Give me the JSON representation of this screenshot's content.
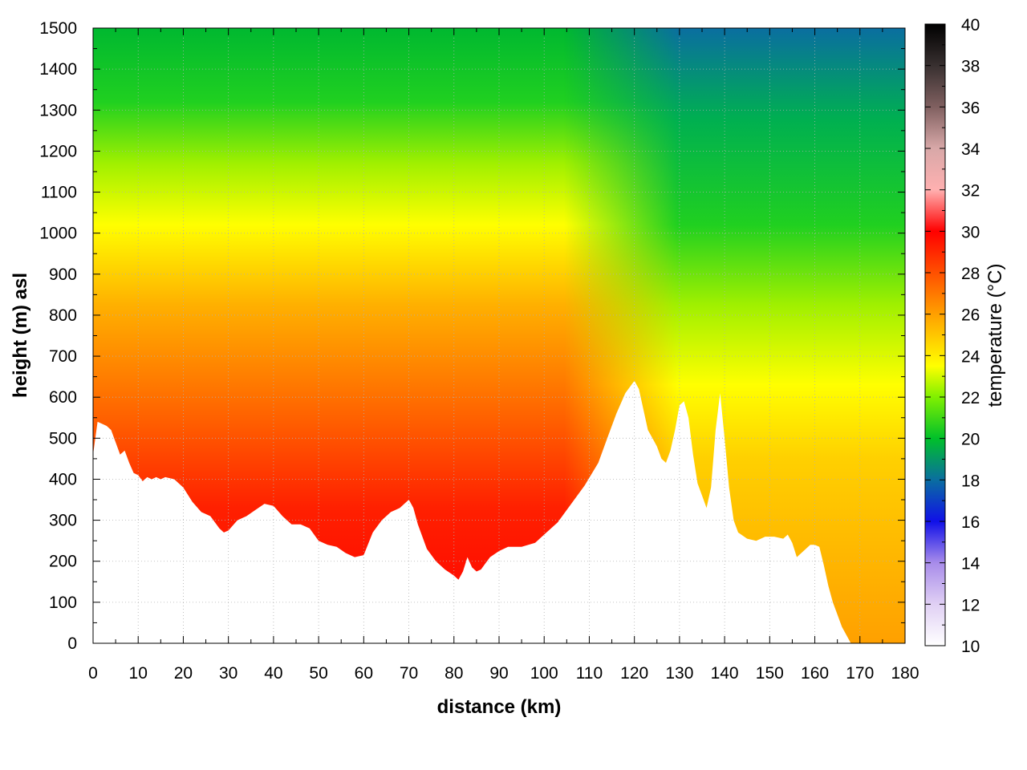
{
  "chart_data": {
    "type": "heatmap",
    "title": "",
    "xlabel": "distance (km)",
    "ylabel": "height (m) asl",
    "colorbar_label": "temperature (°C)",
    "xlim": [
      0,
      180
    ],
    "ylim": [
      0,
      1500
    ],
    "clim": [
      10,
      40
    ],
    "x_ticks": [
      0,
      10,
      20,
      30,
      40,
      50,
      60,
      70,
      80,
      90,
      100,
      110,
      120,
      130,
      140,
      150,
      160,
      170,
      180
    ],
    "y_ticks": [
      0,
      100,
      200,
      300,
      400,
      500,
      600,
      700,
      800,
      900,
      1000,
      1100,
      1200,
      1300,
      1400,
      1500
    ],
    "colorbar_ticks": [
      10,
      12,
      14,
      16,
      18,
      20,
      22,
      24,
      26,
      28,
      30,
      32,
      34,
      36,
      38,
      40
    ],
    "grid": true,
    "colormap": [
      [
        10,
        "#ffffff"
      ],
      [
        12,
        "#e0d0f4"
      ],
      [
        14,
        "#a88cea"
      ],
      [
        16,
        "#1010e8"
      ],
      [
        18,
        "#0a6ea0"
      ],
      [
        20,
        "#00c02a"
      ],
      [
        22,
        "#80f000"
      ],
      [
        23.5,
        "#ffff00"
      ],
      [
        26,
        "#ffa000"
      ],
      [
        28,
        "#ff5000"
      ],
      [
        30,
        "#ff0000"
      ],
      [
        32,
        "#ffb0b0"
      ],
      [
        34,
        "#d8a8a8"
      ],
      [
        36,
        "#806060"
      ],
      [
        38,
        "#383030"
      ],
      [
        40,
        "#000000"
      ]
    ],
    "terrain_profile": {
      "distance_km": [
        0,
        1,
        2,
        3,
        4,
        5,
        6,
        7,
        8,
        9,
        10,
        11,
        12,
        13,
        14,
        15,
        16,
        18,
        20,
        22,
        24,
        26,
        28,
        29,
        30,
        32,
        34,
        36,
        38,
        40,
        42,
        44,
        46,
        48,
        50,
        52,
        54,
        56,
        58,
        60,
        62,
        64,
        66,
        68,
        70,
        71,
        72,
        74,
        76,
        78,
        80,
        81,
        82,
        83,
        84,
        85,
        86,
        87,
        88,
        90,
        92,
        95,
        98,
        100,
        103,
        106,
        109,
        112,
        114,
        116,
        118,
        120,
        121,
        122,
        123,
        124,
        125,
        126,
        127,
        128,
        129,
        130,
        131,
        132,
        133,
        134,
        135,
        136,
        137,
        138,
        139,
        140,
        141,
        142,
        143,
        145,
        147,
        149,
        151,
        153,
        154,
        155,
        156,
        157,
        158,
        159,
        160,
        161,
        162,
        163,
        164,
        165,
        166,
        167,
        168,
        169,
        180
      ],
      "height_m": [
        460,
        540,
        535,
        530,
        520,
        490,
        460,
        470,
        440,
        415,
        410,
        395,
        405,
        400,
        405,
        400,
        405,
        400,
        380,
        345,
        320,
        310,
        280,
        270,
        275,
        300,
        310,
        325,
        340,
        335,
        310,
        290,
        290,
        280,
        250,
        240,
        235,
        220,
        210,
        215,
        270,
        300,
        320,
        330,
        350,
        330,
        290,
        230,
        200,
        180,
        165,
        155,
        175,
        210,
        185,
        175,
        180,
        195,
        210,
        225,
        235,
        235,
        245,
        265,
        295,
        340,
        385,
        440,
        500,
        560,
        610,
        640,
        620,
        570,
        520,
        500,
        480,
        450,
        440,
        470,
        520,
        580,
        590,
        550,
        460,
        390,
        360,
        330,
        380,
        520,
        610,
        500,
        380,
        300,
        270,
        255,
        250,
        260,
        260,
        255,
        265,
        245,
        210,
        220,
        230,
        240,
        240,
        235,
        190,
        140,
        100,
        70,
        40,
        20,
        0,
        0,
        0
      ]
    }
  }
}
